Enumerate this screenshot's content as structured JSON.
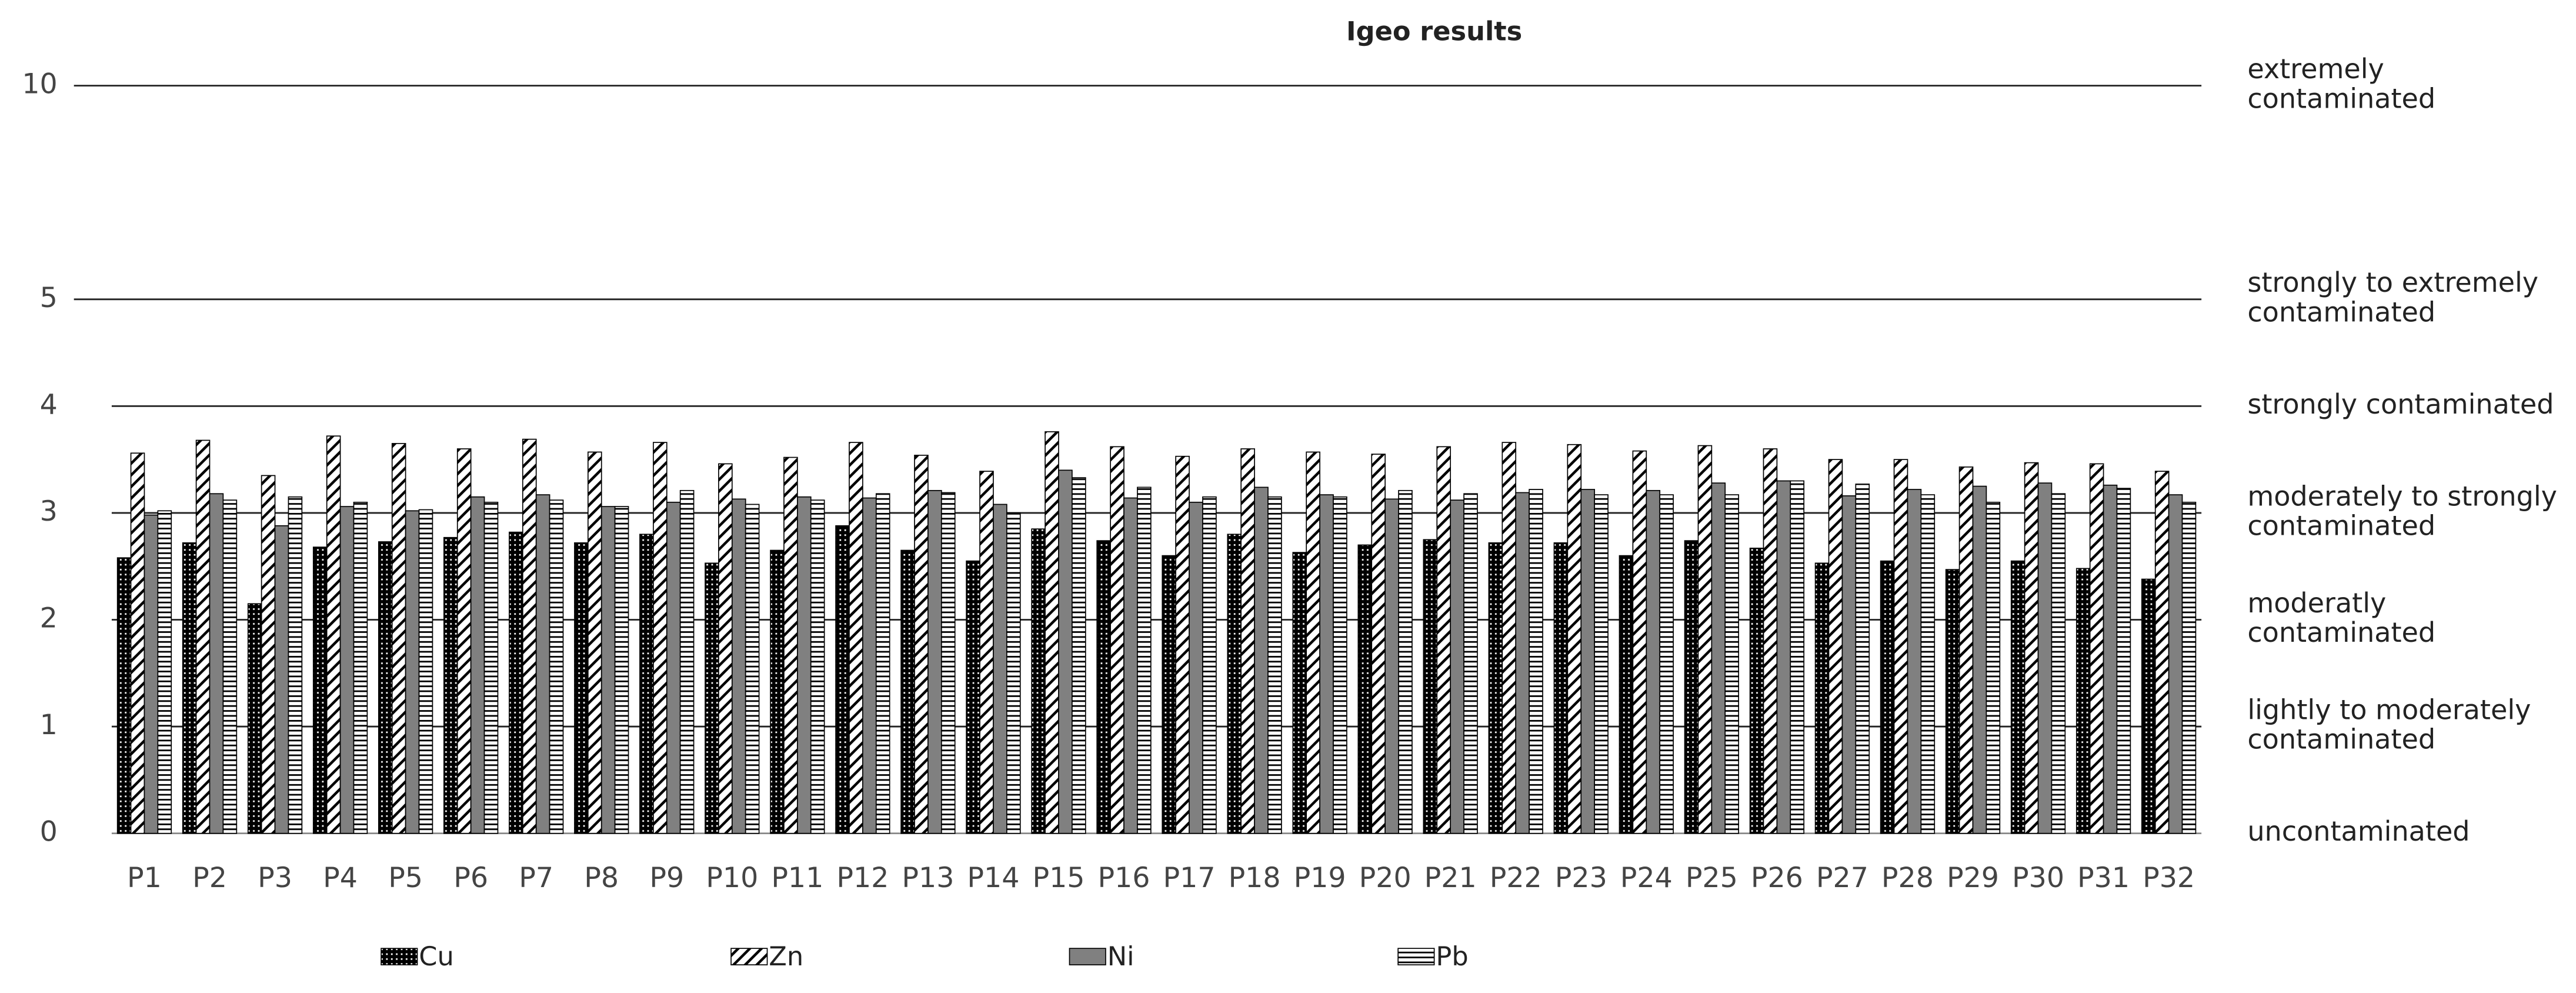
{
  "chart_data": {
    "type": "bar",
    "title": "Igeo results",
    "categories": [
      "P1",
      "P2",
      "P3",
      "P4",
      "P5",
      "P6",
      "P7",
      "P8",
      "P9",
      "P10",
      "P11",
      "P12",
      "P13",
      "P14",
      "P15",
      "P16",
      "P17",
      "P18",
      "P19",
      "P20",
      "P21",
      "P22",
      "P23",
      "P24",
      "P25",
      "P26",
      "P27",
      "P28",
      "P29",
      "P30",
      "P31",
      "P32"
    ],
    "series": [
      {
        "name": "Cu",
        "color": "#000000",
        "pattern": "dots",
        "values": [
          2.58,
          2.72,
          2.15,
          2.68,
          2.73,
          2.77,
          2.82,
          2.72,
          2.8,
          2.53,
          2.65,
          2.88,
          2.65,
          2.55,
          2.85,
          2.74,
          2.6,
          2.8,
          2.63,
          2.7,
          2.75,
          2.72,
          2.72,
          2.6,
          2.74,
          2.67,
          2.53,
          2.55,
          2.47,
          2.55,
          2.48,
          2.38
        ]
      },
      {
        "name": "Zn",
        "color": "#ffffff",
        "pattern": "diagonal",
        "values": [
          3.56,
          3.68,
          3.35,
          3.72,
          3.65,
          3.6,
          3.69,
          3.57,
          3.66,
          3.46,
          3.52,
          3.66,
          3.54,
          3.39,
          3.76,
          3.62,
          3.53,
          3.6,
          3.57,
          3.55,
          3.62,
          3.66,
          3.64,
          3.58,
          3.63,
          3.6,
          3.5,
          3.5,
          3.43,
          3.47,
          3.46,
          3.39
        ]
      },
      {
        "name": "Ni",
        "color": "#808080",
        "pattern": "solid",
        "values": [
          2.98,
          3.18,
          2.88,
          3.06,
          3.02,
          3.15,
          3.17,
          3.06,
          3.1,
          3.13,
          3.15,
          3.14,
          3.21,
          3.08,
          3.4,
          3.14,
          3.1,
          3.24,
          3.17,
          3.13,
          3.12,
          3.19,
          3.22,
          3.21,
          3.28,
          3.3,
          3.16,
          3.22,
          3.25,
          3.28,
          3.26,
          3.17
        ]
      },
      {
        "name": "Pb",
        "color": "#ffffff",
        "pattern": "horizontal",
        "values": [
          3.02,
          3.12,
          3.15,
          3.1,
          3.03,
          3.1,
          3.12,
          3.06,
          3.21,
          3.08,
          3.12,
          3.18,
          3.19,
          3.0,
          3.33,
          3.24,
          3.15,
          3.15,
          3.15,
          3.21,
          3.18,
          3.22,
          3.17,
          3.17,
          3.17,
          3.3,
          3.27,
          3.17,
          3.1,
          3.18,
          3.23,
          3.1
        ]
      }
    ],
    "ylim": [
      0,
      10
    ],
    "yticks": [
      0,
      1,
      2,
      3,
      4,
      5,
      10
    ],
    "grid": true,
    "legend": "bottom",
    "zone_labels": [
      [
        "uncontaminated"
      ],
      [
        "lightly to moderately",
        "contaminated"
      ],
      [
        "moderatly",
        "contaminated"
      ],
      [
        "moderately to strongly",
        "contaminated"
      ],
      [
        "strongly contaminated"
      ],
      [
        "strongly to extremely",
        "contaminated"
      ],
      [
        "extremely",
        "contaminated"
      ]
    ]
  }
}
